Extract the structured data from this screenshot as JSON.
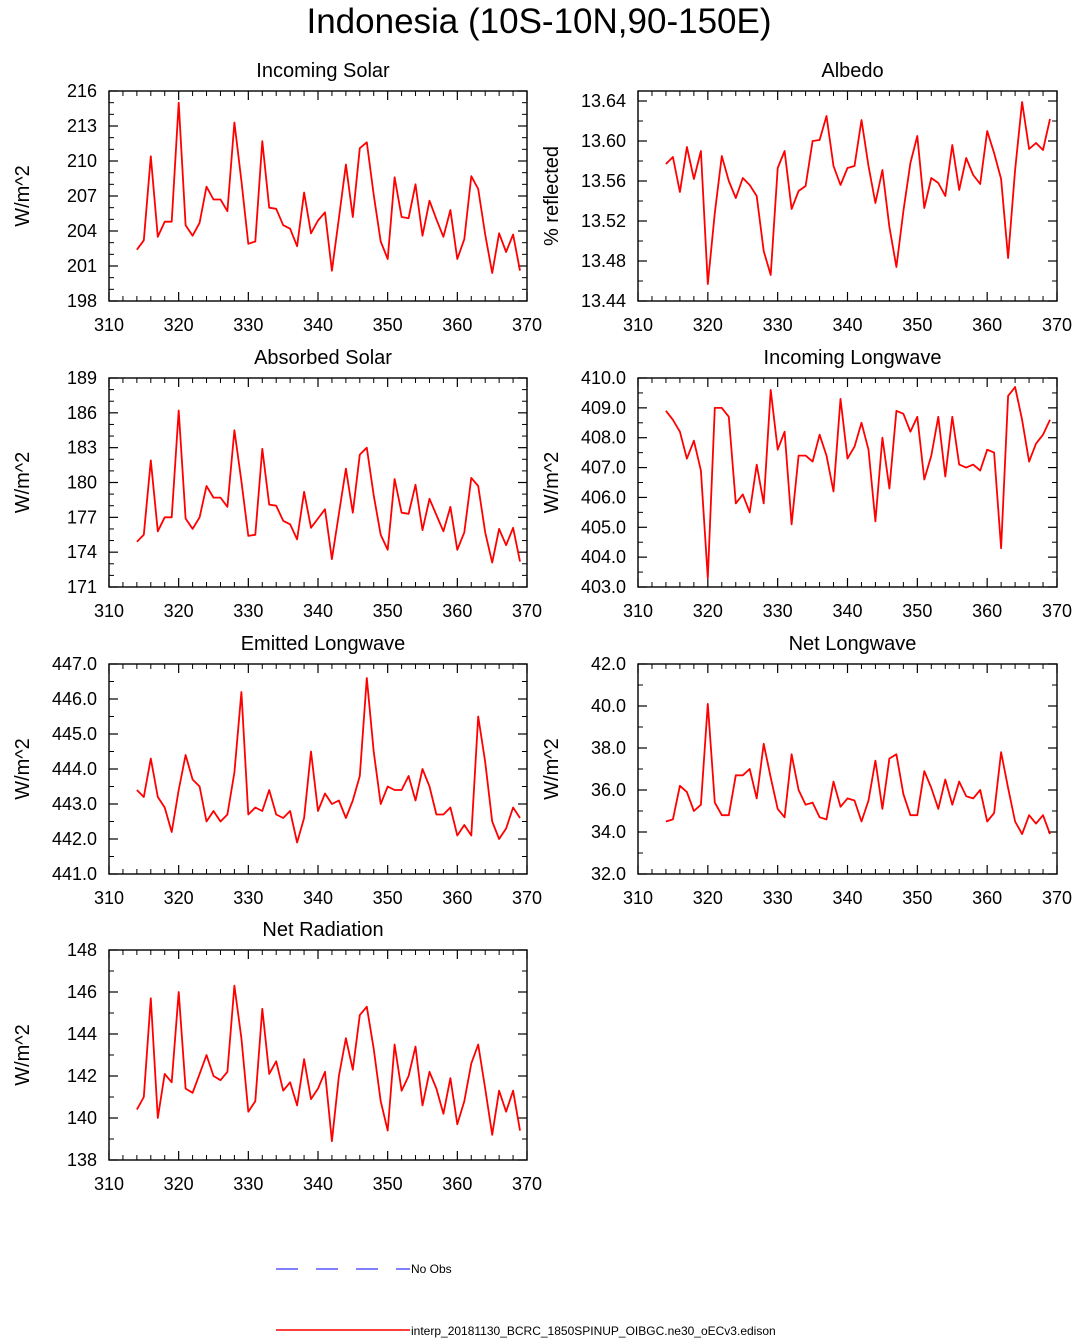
{
  "title": "Indonesia (10S-10N,90-150E)",
  "colors": {
    "model_line": "#ff0000",
    "obs_line": "#3333ff",
    "axis": "#000000"
  },
  "legend": {
    "obs_label": "No Obs",
    "model_label": "interp_20181130_BCRC_1850SPINUP_OIBGC.ne30_oECv3.edison"
  },
  "chart_data": [
    {
      "type": "line",
      "title": "Incoming Solar",
      "xlabel": "",
      "ylabel": "W/m^2",
      "xlim": [
        310,
        370
      ],
      "ylim": [
        198,
        216
      ],
      "xticks": [
        310,
        320,
        330,
        340,
        350,
        360,
        370
      ],
      "yticks": [
        "198",
        "201",
        "204",
        "207",
        "210",
        "213",
        "216"
      ],
      "x_start": 314,
      "series": [
        {
          "values": [
            202.4,
            203.2,
            210.4,
            203.5,
            204.8,
            204.8,
            215.0,
            204.5,
            203.6,
            204.7,
            207.8,
            206.7,
            206.7,
            205.7,
            213.3,
            208.3,
            202.9,
            203.1,
            211.7,
            206.0,
            205.9,
            204.5,
            204.2,
            202.7,
            207.3,
            203.8,
            204.9,
            205.6,
            200.6,
            205.1,
            209.7,
            205.2,
            211.1,
            211.6,
            207.1,
            203.1,
            201.6,
            208.6,
            205.2,
            205.1,
            208.0,
            203.6,
            206.6,
            205.0,
            203.5,
            205.8,
            201.6,
            203.3,
            208.7,
            207.6,
            203.7,
            200.4,
            203.8,
            202.2,
            203.7,
            200.6
          ]
        }
      ]
    },
    {
      "type": "line",
      "title": "Albedo",
      "xlabel": "",
      "ylabel": "% reflected",
      "xlim": [
        310,
        370
      ],
      "ylim": [
        13.44,
        13.65
      ],
      "xticks": [
        310,
        320,
        330,
        340,
        350,
        360,
        370
      ],
      "yticks": [
        "13.44",
        "13.48",
        "13.52",
        "13.56",
        "13.60",
        "13.64"
      ],
      "x_start": 314,
      "series": [
        {
          "values": [
            13.577,
            13.584,
            13.549,
            13.594,
            13.562,
            13.59,
            13.457,
            13.528,
            13.585,
            13.56,
            13.543,
            13.563,
            13.556,
            13.545,
            13.49,
            13.466,
            13.573,
            13.59,
            13.532,
            13.55,
            13.555,
            13.6,
            13.601,
            13.625,
            13.575,
            13.556,
            13.573,
            13.575,
            13.621,
            13.575,
            13.538,
            13.571,
            13.514,
            13.474,
            13.53,
            13.578,
            13.605,
            13.533,
            13.563,
            13.558,
            13.545,
            13.596,
            13.551,
            13.583,
            13.566,
            13.557,
            13.61,
            13.588,
            13.562,
            13.483,
            13.571,
            13.639,
            13.592,
            13.598,
            13.591,
            13.622
          ]
        }
      ]
    },
    {
      "type": "line",
      "title": "Absorbed Solar",
      "xlabel": "",
      "ylabel": "W/m^2",
      "xlim": [
        310,
        370
      ],
      "ylim": [
        171,
        189
      ],
      "xticks": [
        310,
        320,
        330,
        340,
        350,
        360,
        370
      ],
      "yticks": [
        "171",
        "174",
        "177",
        "180",
        "183",
        "186",
        "189"
      ],
      "x_start": 314,
      "series": [
        {
          "values": [
            174.9,
            175.5,
            181.9,
            175.8,
            177.0,
            177.0,
            186.2,
            176.9,
            176.0,
            177.0,
            179.7,
            178.7,
            178.7,
            177.9,
            184.5,
            180.1,
            175.4,
            175.5,
            182.9,
            178.1,
            178.0,
            176.7,
            176.4,
            175.1,
            179.2,
            176.1,
            176.9,
            177.7,
            173.4,
            177.3,
            181.2,
            177.4,
            182.4,
            183.0,
            178.9,
            175.5,
            174.2,
            180.3,
            177.4,
            177.3,
            179.8,
            175.9,
            178.6,
            177.2,
            175.8,
            177.9,
            174.2,
            175.7,
            180.4,
            179.7,
            175.7,
            173.1,
            176.0,
            174.6,
            176.1,
            173.2
          ]
        }
      ]
    },
    {
      "type": "line",
      "title": "Incoming Longwave",
      "xlabel": "",
      "ylabel": "W/m^2",
      "xlim": [
        310,
        370
      ],
      "ylim": [
        403.0,
        410.0
      ],
      "xticks": [
        310,
        320,
        330,
        340,
        350,
        360,
        370
      ],
      "yticks": [
        "403.0",
        "404.0",
        "405.0",
        "406.0",
        "407.0",
        "408.0",
        "409.0",
        "410.0"
      ],
      "x_start": 314,
      "series": [
        {
          "values": [
            408.9,
            408.6,
            408.2,
            407.3,
            407.9,
            406.9,
            403.3,
            409.0,
            409.0,
            408.7,
            405.8,
            406.1,
            405.5,
            407.1,
            405.8,
            409.6,
            407.6,
            408.2,
            405.1,
            407.4,
            407.4,
            407.2,
            408.1,
            407.4,
            406.2,
            409.3,
            407.3,
            407.7,
            408.5,
            407.6,
            405.2,
            408.0,
            406.3,
            408.9,
            408.8,
            408.2,
            408.7,
            406.6,
            407.4,
            408.7,
            406.7,
            408.7,
            407.1,
            407.0,
            407.1,
            406.9,
            407.6,
            407.5,
            404.3,
            409.4,
            409.7,
            408.6,
            407.2,
            407.8,
            408.1,
            408.6
          ]
        }
      ]
    },
    {
      "type": "line",
      "title": "Emitted Longwave",
      "xlabel": "",
      "ylabel": "W/m^2",
      "xlim": [
        310,
        370
      ],
      "ylim": [
        441.0,
        447.0
      ],
      "xticks": [
        310,
        320,
        330,
        340,
        350,
        360,
        370
      ],
      "yticks": [
        "441.0",
        "442.0",
        "443.0",
        "444.0",
        "445.0",
        "446.0",
        "447.0"
      ],
      "x_start": 314,
      "series": [
        {
          "values": [
            443.4,
            443.2,
            444.3,
            443.2,
            442.9,
            442.2,
            443.4,
            444.4,
            443.7,
            443.5,
            442.5,
            442.8,
            442.5,
            442.7,
            443.9,
            446.2,
            442.7,
            442.9,
            442.8,
            443.4,
            442.7,
            442.6,
            442.8,
            441.9,
            442.6,
            444.5,
            442.8,
            443.3,
            443.0,
            443.1,
            442.6,
            443.1,
            443.8,
            446.6,
            444.5,
            443.0,
            443.5,
            443.4,
            443.4,
            443.8,
            443.1,
            444.0,
            443.5,
            442.7,
            442.7,
            442.9,
            442.1,
            442.4,
            442.1,
            445.5,
            444.2,
            442.5,
            442.0,
            442.3,
            442.9,
            442.6
          ]
        }
      ]
    },
    {
      "type": "line",
      "title": "Net Longwave",
      "xlabel": "",
      "ylabel": "W/m^2",
      "xlim": [
        310,
        370
      ],
      "ylim": [
        32.0,
        42.0
      ],
      "xticks": [
        310,
        320,
        330,
        340,
        350,
        360,
        370
      ],
      "yticks": [
        "32.0",
        "34.0",
        "36.0",
        "38.0",
        "40.0",
        "42.0"
      ],
      "x_start": 314,
      "series": [
        {
          "values": [
            34.5,
            34.6,
            36.2,
            35.9,
            35.0,
            35.3,
            40.1,
            35.4,
            34.8,
            34.8,
            36.7,
            36.7,
            37.0,
            35.6,
            38.2,
            36.6,
            35.1,
            34.7,
            37.7,
            36.0,
            35.3,
            35.4,
            34.7,
            34.6,
            36.4,
            35.2,
            35.6,
            35.5,
            34.5,
            35.5,
            37.4,
            35.1,
            37.5,
            37.7,
            35.8,
            34.8,
            34.8,
            36.9,
            36.1,
            35.1,
            36.5,
            35.3,
            36.4,
            35.7,
            35.6,
            36.0,
            34.5,
            34.9,
            37.8,
            36.1,
            34.5,
            33.9,
            34.8,
            34.4,
            34.8,
            33.9
          ]
        }
      ]
    },
    {
      "type": "line",
      "title": "Net Radiation",
      "xlabel": "",
      "ylabel": "W/m^2",
      "xlim": [
        310,
        370
      ],
      "ylim": [
        138,
        148
      ],
      "xticks": [
        310,
        320,
        330,
        340,
        350,
        360,
        370
      ],
      "yticks": [
        "138",
        "140",
        "142",
        "144",
        "146",
        "148"
      ],
      "x_start": 314,
      "series": [
        {
          "values": [
            140.4,
            141.0,
            145.7,
            140.0,
            142.1,
            141.7,
            146.0,
            141.4,
            141.2,
            142.1,
            143.0,
            142.0,
            141.8,
            142.2,
            146.3,
            143.8,
            140.3,
            140.8,
            145.2,
            142.1,
            142.7,
            141.3,
            141.7,
            140.6,
            142.8,
            140.9,
            141.4,
            142.2,
            138.9,
            142.0,
            143.8,
            142.3,
            144.9,
            145.3,
            143.3,
            140.8,
            139.4,
            143.5,
            141.3,
            142.0,
            143.4,
            140.6,
            142.2,
            141.4,
            140.2,
            141.9,
            139.7,
            140.8,
            142.6,
            143.5,
            141.4,
            139.2,
            141.3,
            140.3,
            141.3,
            139.4
          ]
        }
      ]
    }
  ]
}
